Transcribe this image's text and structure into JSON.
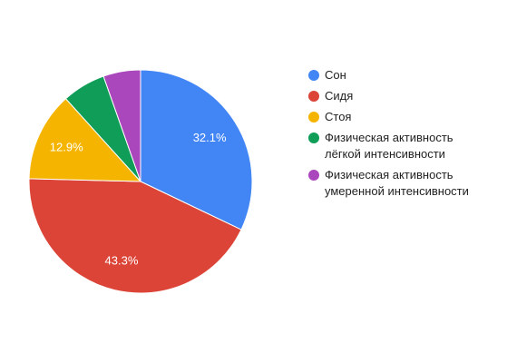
{
  "chart_data": {
    "type": "pie",
    "title": "",
    "legend_position": "right",
    "start_angle_deg": 0,
    "direction": "clockwise",
    "slices": [
      {
        "label": "Сон",
        "value": 32.1,
        "value_label": "32.1%",
        "color": "#4285f4"
      },
      {
        "label": "Сидя",
        "value": 43.3,
        "value_label": "43.3%",
        "color": "#db4437"
      },
      {
        "label": "Стоя",
        "value": 12.9,
        "value_label": "12.9%",
        "color": "#f4b400"
      },
      {
        "label": "Физическая активность\nлёгкой интенсивности",
        "value": 6.3,
        "value_label": "",
        "color": "#0f9d58"
      },
      {
        "label": "Физическая активность\nумеренной интенсивности",
        "value": 5.4,
        "value_label": "",
        "color": "#ab47bc"
      }
    ]
  }
}
